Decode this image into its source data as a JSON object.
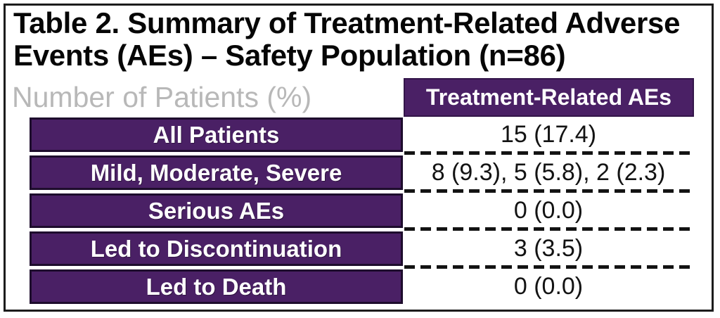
{
  "title": "Table 2. Summary of Treatment-Related Adverse Events (AEs) – Safety Population (n=86)",
  "title_lines": [
    "Table 2. Summary of Treatment-Related Adverse",
    "Events (AEs) – Safety Population (n=86)"
  ],
  "table": {
    "corner_label": "Number of Patients (%)",
    "column_header": "Treatment-Related AEs",
    "rows": [
      {
        "label": "All Patients",
        "value": "15 (17.4)"
      },
      {
        "label": "Mild, Moderate, Severe",
        "value": "8 (9.3), 5 (5.8), 2 (2.3)"
      },
      {
        "label": "Serious AEs",
        "value": "0 (0.0)"
      },
      {
        "label": "Led to Discontinuation",
        "value": "3 (3.5)"
      },
      {
        "label": "Led to Death",
        "value": "0 (0.0)"
      }
    ]
  },
  "chart_data": {
    "type": "table",
    "title": "Table 2. Summary of Treatment-Related Adverse Events (AEs) – Safety Population (n=86)",
    "row_axis_label": "Number of Patients (%)",
    "columns": [
      "Treatment-Related AEs"
    ],
    "rows": [
      {
        "label": "All Patients",
        "values": [
          "15 (17.4)"
        ]
      },
      {
        "label": "Mild, Moderate, Severe",
        "values": [
          "8 (9.3), 5 (5.8), 2 (2.3)"
        ]
      },
      {
        "label": "Serious AEs",
        "values": [
          "0 (0.0)"
        ]
      },
      {
        "label": "Led to Discontinuation",
        "values": [
          "3 (3.5)"
        ]
      },
      {
        "label": "Led to Death",
        "values": [
          "0 (0.0)"
        ]
      }
    ],
    "population_n": 86
  },
  "colors": {
    "purple": "#4a2065",
    "cell_border": "#1e0d2d",
    "header_border": "#331549",
    "header_text": "#ffffff",
    "corner_label_gray": "#b8b8b8",
    "text": "#131313"
  }
}
